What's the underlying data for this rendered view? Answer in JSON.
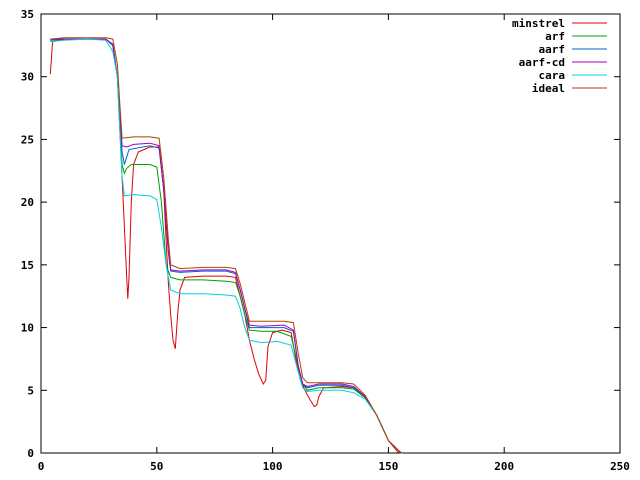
{
  "chart_data": {
    "type": "line",
    "title": "",
    "xlabel": "",
    "ylabel": "",
    "xlim": [
      0,
      250
    ],
    "ylim": [
      0,
      35
    ],
    "x_ticks": [
      0,
      50,
      100,
      150,
      200,
      250
    ],
    "y_ticks": [
      0,
      5,
      10,
      15,
      20,
      25,
      30,
      35
    ],
    "grid": false,
    "legend_position": "top-right",
    "series": [
      {
        "name": "minstrel",
        "color": "#e00000",
        "points": [
          [
            4,
            30.2
          ],
          [
            5,
            32.8
          ],
          [
            10,
            33
          ],
          [
            20,
            33
          ],
          [
            28,
            33
          ],
          [
            31,
            32.5
          ],
          [
            33,
            30
          ],
          [
            34,
            26
          ],
          [
            35,
            22
          ],
          [
            36,
            18
          ],
          [
            37,
            14
          ],
          [
            37.5,
            12.3
          ],
          [
            38,
            14
          ],
          [
            39,
            20
          ],
          [
            40,
            23
          ],
          [
            42,
            24
          ],
          [
            47,
            24.4
          ],
          [
            51,
            24.4
          ],
          [
            53,
            21
          ],
          [
            54,
            17
          ],
          [
            55,
            13.5
          ],
          [
            56,
            11
          ],
          [
            57,
            9
          ],
          [
            58,
            8.3
          ],
          [
            59,
            11
          ],
          [
            60,
            13
          ],
          [
            62,
            14
          ],
          [
            70,
            14.1
          ],
          [
            80,
            14.1
          ],
          [
            84,
            14
          ],
          [
            86,
            12.5
          ],
          [
            88,
            11
          ],
          [
            90,
            9
          ],
          [
            92,
            7.5
          ],
          [
            94,
            6.3
          ],
          [
            96,
            5.5
          ],
          [
            97,
            5.8
          ],
          [
            98,
            8.5
          ],
          [
            100,
            9.6
          ],
          [
            104,
            9.8
          ],
          [
            108,
            9.6
          ],
          [
            110,
            7.5
          ],
          [
            112,
            5.8
          ],
          [
            114,
            5
          ],
          [
            116,
            4.3
          ],
          [
            118,
            3.7
          ],
          [
            119,
            3.8
          ],
          [
            120,
            4.5
          ],
          [
            122,
            5.2
          ],
          [
            130,
            5.3
          ],
          [
            135,
            5.2
          ],
          [
            140,
            4.5
          ],
          [
            145,
            3
          ],
          [
            150,
            1
          ],
          [
            155,
            0.1
          ],
          [
            156,
            0
          ]
        ]
      },
      {
        "name": "arf",
        "color": "#00a000",
        "points": [
          [
            4,
            32.9
          ],
          [
            10,
            33
          ],
          [
            20,
            33
          ],
          [
            28,
            33
          ],
          [
            31,
            32.5
          ],
          [
            33,
            30
          ],
          [
            34,
            26
          ],
          [
            35,
            23
          ],
          [
            36,
            22.3
          ],
          [
            37,
            22.7
          ],
          [
            39,
            23
          ],
          [
            47,
            23
          ],
          [
            50,
            22.8
          ],
          [
            52,
            20
          ],
          [
            54,
            15
          ],
          [
            56,
            14
          ],
          [
            60,
            13.8
          ],
          [
            70,
            13.8
          ],
          [
            80,
            13.7
          ],
          [
            84,
            13.6
          ],
          [
            86,
            12.5
          ],
          [
            88,
            11
          ],
          [
            90,
            9.8
          ],
          [
            95,
            9.7
          ],
          [
            102,
            9.7
          ],
          [
            108,
            9.3
          ],
          [
            111,
            7
          ],
          [
            113,
            5.5
          ],
          [
            115,
            5
          ],
          [
            120,
            5.2
          ],
          [
            130,
            5.2
          ],
          [
            135,
            5.1
          ],
          [
            140,
            4.4
          ],
          [
            145,
            3
          ],
          [
            150,
            1
          ],
          [
            154,
            0.1
          ],
          [
            156,
            0
          ]
        ]
      },
      {
        "name": "aarf",
        "color": "#0060d0",
        "points": [
          [
            4,
            32.9
          ],
          [
            10,
            33
          ],
          [
            20,
            33
          ],
          [
            28,
            33
          ],
          [
            31,
            32.5
          ],
          [
            33,
            30
          ],
          [
            34,
            27
          ],
          [
            35,
            24
          ],
          [
            36,
            23
          ],
          [
            38,
            24.2
          ],
          [
            47,
            24.5
          ],
          [
            51,
            24.3
          ],
          [
            53,
            21
          ],
          [
            55,
            16
          ],
          [
            56,
            14.5
          ],
          [
            60,
            14.4
          ],
          [
            70,
            14.5
          ],
          [
            80,
            14.5
          ],
          [
            84,
            14.3
          ],
          [
            86,
            13
          ],
          [
            88,
            11.5
          ],
          [
            90,
            10
          ],
          [
            95,
            10
          ],
          [
            105,
            10
          ],
          [
            109,
            9.7
          ],
          [
            111,
            7
          ],
          [
            113,
            5.5
          ],
          [
            115,
            5.2
          ],
          [
            120,
            5.4
          ],
          [
            130,
            5.4
          ],
          [
            135,
            5.2
          ],
          [
            140,
            4.5
          ],
          [
            145,
            3
          ],
          [
            150,
            1
          ],
          [
            154,
            0.1
          ],
          [
            156,
            0
          ]
        ]
      },
      {
        "name": "aarf-cd",
        "color": "#a000c0",
        "points": [
          [
            4,
            33
          ],
          [
            10,
            33
          ],
          [
            20,
            33
          ],
          [
            28,
            33
          ],
          [
            31,
            32.6
          ],
          [
            33,
            30
          ],
          [
            34,
            27
          ],
          [
            35,
            24.5
          ],
          [
            37,
            24.4
          ],
          [
            40,
            24.6
          ],
          [
            47,
            24.7
          ],
          [
            51,
            24.5
          ],
          [
            53,
            21
          ],
          [
            55,
            16
          ],
          [
            56,
            14.6
          ],
          [
            60,
            14.5
          ],
          [
            70,
            14.6
          ],
          [
            80,
            14.6
          ],
          [
            84,
            14.4
          ],
          [
            86,
            13
          ],
          [
            88,
            11.5
          ],
          [
            90,
            10.2
          ],
          [
            95,
            10.1
          ],
          [
            105,
            10.2
          ],
          [
            109,
            9.8
          ],
          [
            111,
            7
          ],
          [
            113,
            5.5
          ],
          [
            115,
            5.3
          ],
          [
            120,
            5.5
          ],
          [
            130,
            5.5
          ],
          [
            135,
            5.3
          ],
          [
            140,
            4.5
          ],
          [
            145,
            3
          ],
          [
            150,
            1
          ],
          [
            154,
            0.1
          ],
          [
            156,
            0
          ]
        ]
      },
      {
        "name": "cara",
        "color": "#00d0e0",
        "points": [
          [
            4,
            32.8
          ],
          [
            10,
            32.9
          ],
          [
            20,
            33
          ],
          [
            28,
            32.9
          ],
          [
            31,
            32
          ],
          [
            33,
            30
          ],
          [
            34,
            26
          ],
          [
            35,
            22
          ],
          [
            36,
            20.5
          ],
          [
            40,
            20.6
          ],
          [
            47,
            20.5
          ],
          [
            50,
            20.2
          ],
          [
            52,
            18
          ],
          [
            54,
            15
          ],
          [
            56,
            13
          ],
          [
            60,
            12.7
          ],
          [
            70,
            12.7
          ],
          [
            80,
            12.6
          ],
          [
            84,
            12.5
          ],
          [
            86,
            11.5
          ],
          [
            88,
            10
          ],
          [
            90,
            9
          ],
          [
            95,
            8.8
          ],
          [
            102,
            8.9
          ],
          [
            108,
            8.6
          ],
          [
            111,
            6.5
          ],
          [
            113,
            5.2
          ],
          [
            115,
            4.9
          ],
          [
            120,
            5
          ],
          [
            130,
            5
          ],
          [
            135,
            4.8
          ],
          [
            140,
            4.3
          ],
          [
            145,
            3
          ],
          [
            150,
            1
          ],
          [
            154,
            0.1
          ],
          [
            156,
            0
          ]
        ]
      },
      {
        "name": "ideal",
        "color": "#b04000",
        "points": [
          [
            4,
            33
          ],
          [
            10,
            33.1
          ],
          [
            20,
            33.1
          ],
          [
            28,
            33.1
          ],
          [
            31,
            33
          ],
          [
            33,
            31
          ],
          [
            34,
            28
          ],
          [
            35,
            25.1
          ],
          [
            40,
            25.2
          ],
          [
            47,
            25.2
          ],
          [
            51,
            25.1
          ],
          [
            53,
            22
          ],
          [
            55,
            17
          ],
          [
            56,
            15
          ],
          [
            60,
            14.7
          ],
          [
            70,
            14.8
          ],
          [
            80,
            14.8
          ],
          [
            84,
            14.7
          ],
          [
            86,
            13.5
          ],
          [
            88,
            12
          ],
          [
            90,
            10.5
          ],
          [
            95,
            10.5
          ],
          [
            105,
            10.5
          ],
          [
            109,
            10.4
          ],
          [
            111,
            8
          ],
          [
            113,
            6
          ],
          [
            115,
            5.6
          ],
          [
            120,
            5.6
          ],
          [
            130,
            5.6
          ],
          [
            135,
            5.5
          ],
          [
            140,
            4.6
          ],
          [
            145,
            3
          ],
          [
            150,
            1
          ],
          [
            154,
            0.1
          ],
          [
            156,
            0
          ]
        ]
      }
    ]
  }
}
